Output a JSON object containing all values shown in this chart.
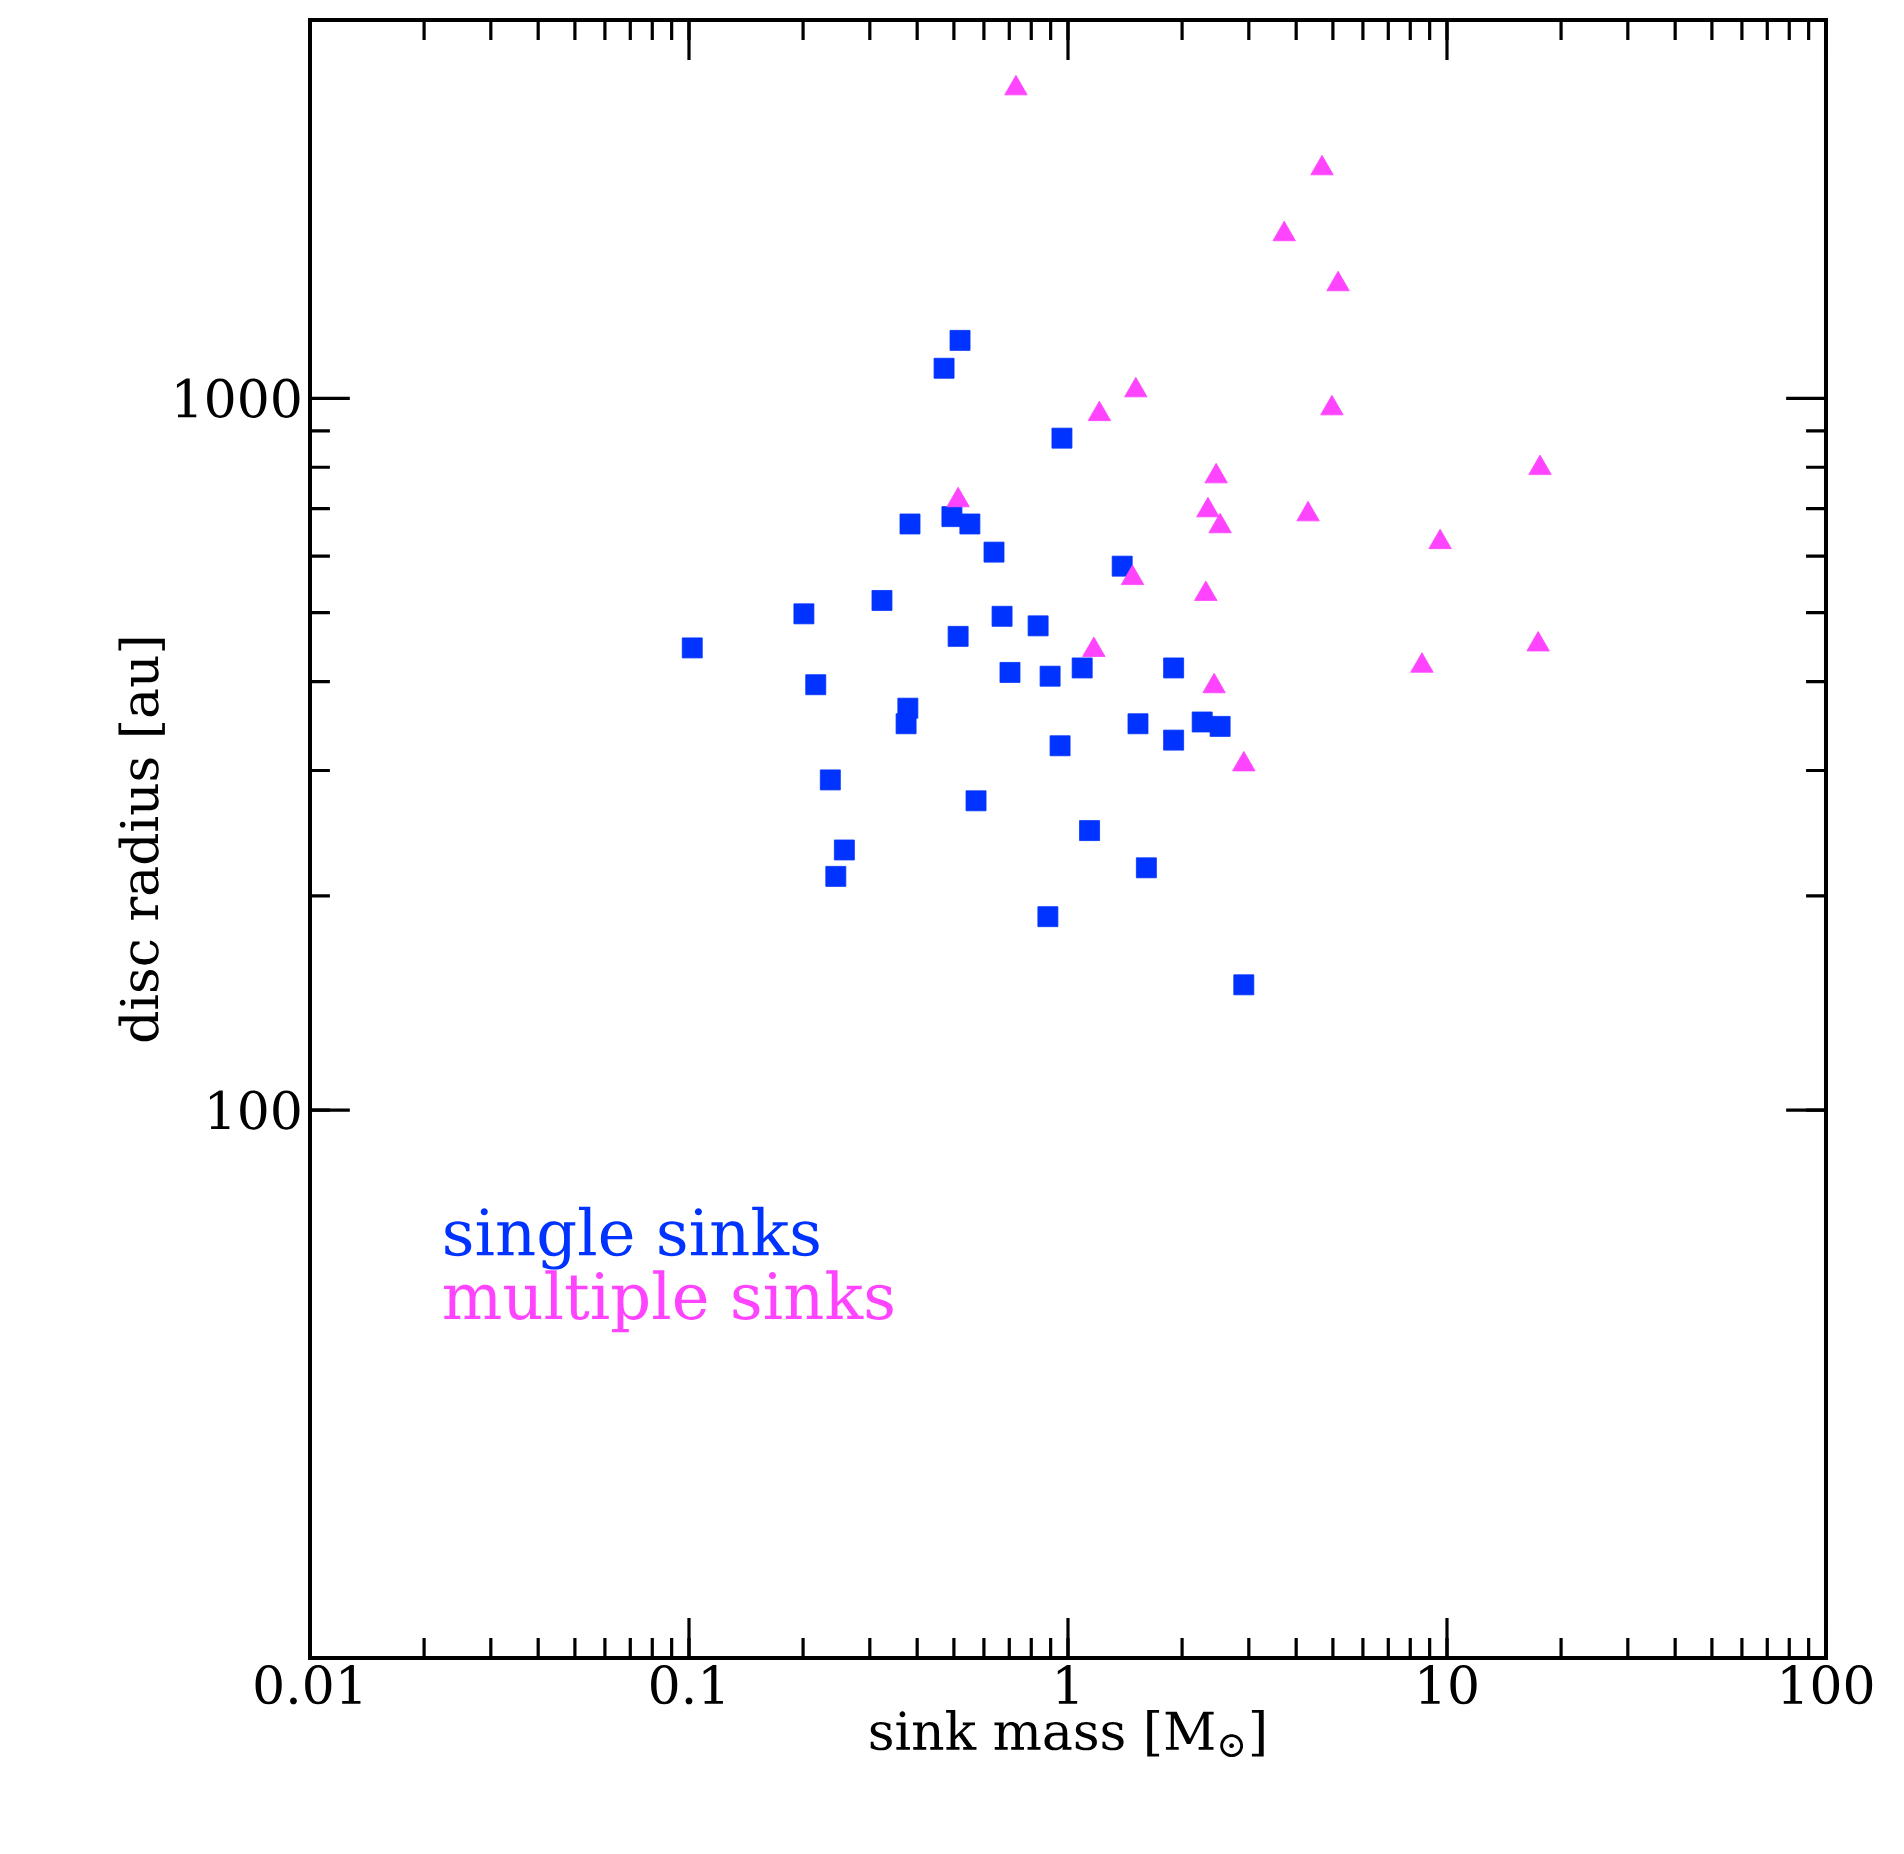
{
  "chart_data": {
    "type": "scatter",
    "xlabel": "sink mass [M$_{⊙}$]",
    "ylabel": "disc radius [au]",
    "log": "xy",
    "xlim": [
      0.01,
      100
    ],
    "ylim": [
      17,
      3400
    ],
    "xticks": [
      0.01,
      0.1,
      1,
      10,
      100
    ],
    "yticks": [
      100,
      1000
    ],
    "legend": "bottom left",
    "series": [
      {
        "name": "single sinks",
        "color": "#0033ff",
        "marker": "square",
        "x": [
          0.519,
          0.471,
          0.964,
          0.383,
          0.494,
          0.551,
          0.638,
          1.39,
          0.323,
          0.201,
          0.67,
          0.834,
          0.513,
          0.102,
          0.703,
          0.897,
          1.09,
          1.9,
          0.216,
          0.378,
          0.374,
          1.53,
          2.26,
          2.52,
          1.9,
          0.953,
          0.236,
          0.572,
          1.14,
          0.257,
          0.244,
          1.61,
          0.885,
          2.91
        ],
        "values": [
          1206,
          1102,
          879,
          666,
          682,
          666,
          608,
          581,
          520,
          498,
          494,
          479,
          463,
          446,
          412,
          407,
          418,
          418,
          396,
          367,
          349,
          349,
          351,
          346,
          331,
          325,
          291,
          272,
          247,
          232,
          213,
          219,
          187,
          150
        ]
      },
      {
        "name": "multiple sinks",
        "color": "#ff44ff",
        "marker": "triangle",
        "x": [
          0.729,
          4.68,
          3.72,
          5.16,
          1.51,
          1.21,
          4.97,
          17.6,
          2.46,
          2.34,
          2.52,
          4.3,
          9.59,
          1.48,
          2.31,
          1.17,
          17.4,
          8.59,
          2.43,
          2.91,
          0.513
        ],
        "values": [
          2725,
          2104,
          1700,
          1446,
          1026,
          950,
          968,
          798,
          777,
          696,
          661,
          687,
          628,
          559,
          531,
          443,
          451,
          421,
          394,
          306,
          719
        ]
      }
    ]
  }
}
